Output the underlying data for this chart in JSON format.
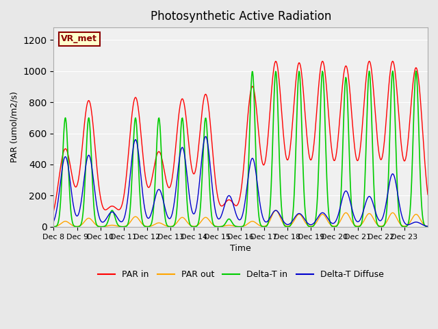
{
  "title": "Photosynthetic Active Radiation",
  "ylabel": "PAR (umol/m2/s)",
  "xlabel": "Time",
  "annotation": "VR_met",
  "ylim": [
    0,
    1280
  ],
  "yticks": [
    0,
    200,
    400,
    600,
    800,
    1000,
    1200
  ],
  "bg_color": "#e8e8e8",
  "plot_bg_color": "#f0f0f0",
  "colors": {
    "par_in": "#ff0000",
    "par_out": "#ffa500",
    "delta_t_in": "#00cc00",
    "delta_t_diffuse": "#0000cc"
  },
  "x_tick_labels": [
    "Dec 8",
    "Dec 9",
    "Dec 10",
    "Dec 11",
    "Dec 12",
    "Dec 13",
    "Dec 14",
    "Dec 15",
    "Dec 16",
    "Dec 17",
    "Dec 18",
    "Dec 19",
    "Dec 20",
    "Dec 21",
    "Dec 22",
    "Dec 23"
  ],
  "num_days": 16,
  "day_peaks_par_in": [
    500,
    810,
    130,
    830,
    480,
    820,
    850,
    170,
    900,
    1060,
    1050,
    1060,
    1030,
    1060,
    1060,
    1020
  ],
  "day_peaks_par_out": [
    35,
    55,
    10,
    65,
    25,
    60,
    60,
    10,
    35,
    105,
    80,
    80,
    90,
    85,
    90,
    80
  ],
  "day_peaks_delta_in": [
    700,
    700,
    105,
    700,
    700,
    700,
    700,
    50,
    1000,
    1000,
    1000,
    1000,
    960,
    1000,
    1000,
    1000
  ],
  "day_peaks_delta_diffuse": [
    450,
    460,
    95,
    560,
    240,
    510,
    580,
    200,
    440,
    105,
    85,
    90,
    230,
    195,
    340,
    30
  ],
  "points_per_day": 48
}
